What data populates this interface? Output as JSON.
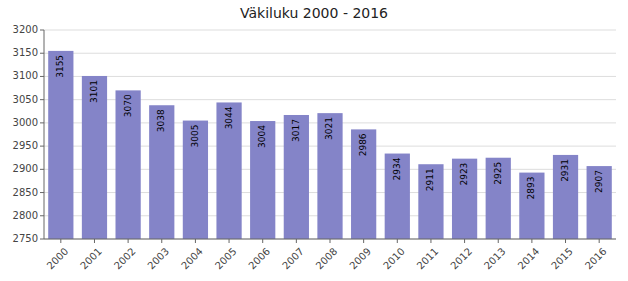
{
  "chart_data": {
    "type": "bar",
    "title": "Väkiluku 2000 - 2016",
    "categories": [
      "2000",
      "2001",
      "2002",
      "2003",
      "2004",
      "2005",
      "2006",
      "2007",
      "2008",
      "2009",
      "2010",
      "2011",
      "2012",
      "2013",
      "2014",
      "2015",
      "2016"
    ],
    "values": [
      3155,
      3101,
      3070,
      3038,
      3005,
      3044,
      3004,
      3017,
      3021,
      2986,
      2934,
      2911,
      2923,
      2925,
      2893,
      2931,
      2907
    ],
    "color": "#8484c8",
    "ylim": [
      2750,
      3200
    ],
    "yticks": [
      2750,
      2800,
      2850,
      2900,
      2950,
      3000,
      3050,
      3100,
      3150,
      3200
    ],
    "grid": true,
    "data_labels": true
  }
}
